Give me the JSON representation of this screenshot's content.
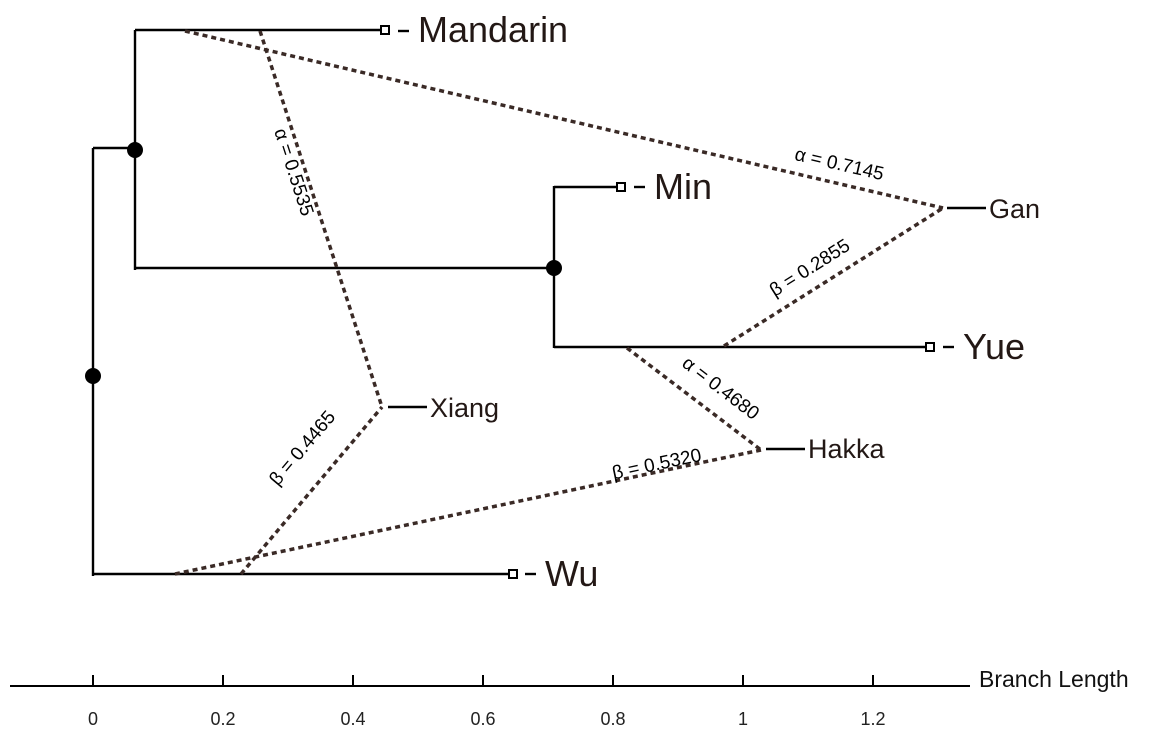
{
  "leaves": {
    "mandarin": "Mandarin",
    "min": "Min",
    "yue": "Yue",
    "wu": "Wu",
    "gan": "Gan",
    "xiang": "Xiang",
    "hakka": "Hakka"
  },
  "edge_labels": {
    "gan_alpha": "α = 0.7145",
    "gan_beta": "β = 0.2855",
    "xiang_alpha": "α = 0.5535",
    "xiang_beta": "β = 0.4465",
    "hakka_alpha": "α = 0.4680",
    "hakka_beta": "β = 0.5320"
  },
  "axis": {
    "title": "Branch Length",
    "ticks": [
      "0",
      "0.2",
      "0.4",
      "0.6",
      "0.8",
      "1",
      "1.2"
    ]
  },
  "colors": {
    "tree_line": "#000000",
    "hybrid_line": "#3a2a26",
    "node": "#000000"
  }
}
